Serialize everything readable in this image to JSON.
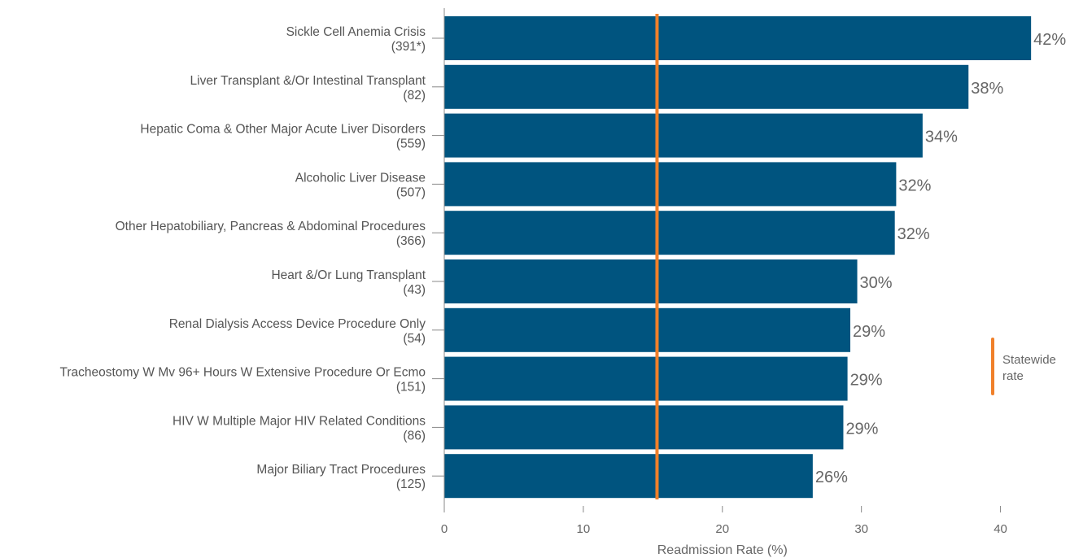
{
  "chart_data": {
    "type": "bar",
    "orientation": "horizontal",
    "categories": [
      {
        "name": "Sickle Cell Anemia Crisis",
        "count": "(391*)"
      },
      {
        "name": "Liver Transplant &/Or Intestinal Transplant",
        "count": "(82)"
      },
      {
        "name": "Hepatic Coma & Other Major Acute Liver Disorders",
        "count": "(559)"
      },
      {
        "name": "Alcoholic Liver Disease",
        "count": "(507)"
      },
      {
        "name": "Other Hepatobiliary, Pancreas & Abdominal Procedures",
        "count": "(366)"
      },
      {
        "name": "Heart &/Or Lung Transplant",
        "count": "(43)"
      },
      {
        "name": "Renal Dialysis Access Device Procedure Only",
        "count": "(54)"
      },
      {
        "name": "Tracheostomy W Mv 96+ Hours W Extensive Procedure Or Ecmo",
        "count": "(151)"
      },
      {
        "name": "HIV W Multiple Major HIV Related Conditions",
        "count": "(86)"
      },
      {
        "name": "Major Biliary Tract Procedures",
        "count": "(125)"
      }
    ],
    "values": [
      42.2,
      37.7,
      34.4,
      32.5,
      32.4,
      29.7,
      29.2,
      29.0,
      28.7,
      26.5
    ],
    "value_labels": [
      "42%",
      "38%",
      "34%",
      "32%",
      "32%",
      "30%",
      "29%",
      "29%",
      "29%",
      "26%"
    ],
    "xlabel": "Readmission Rate (%)",
    "xlim": [
      0,
      45
    ],
    "xticks": [
      0,
      10,
      20,
      30,
      40
    ],
    "reference_line": {
      "value": 15.3,
      "label": "Statewide rate"
    },
    "legend": {
      "lines": [
        "Statewide",
        "rate"
      ],
      "placement": "right"
    },
    "colors": {
      "bar": "#00547F",
      "reference": "#F0802A",
      "axis": "#888888"
    },
    "grid": false
  }
}
